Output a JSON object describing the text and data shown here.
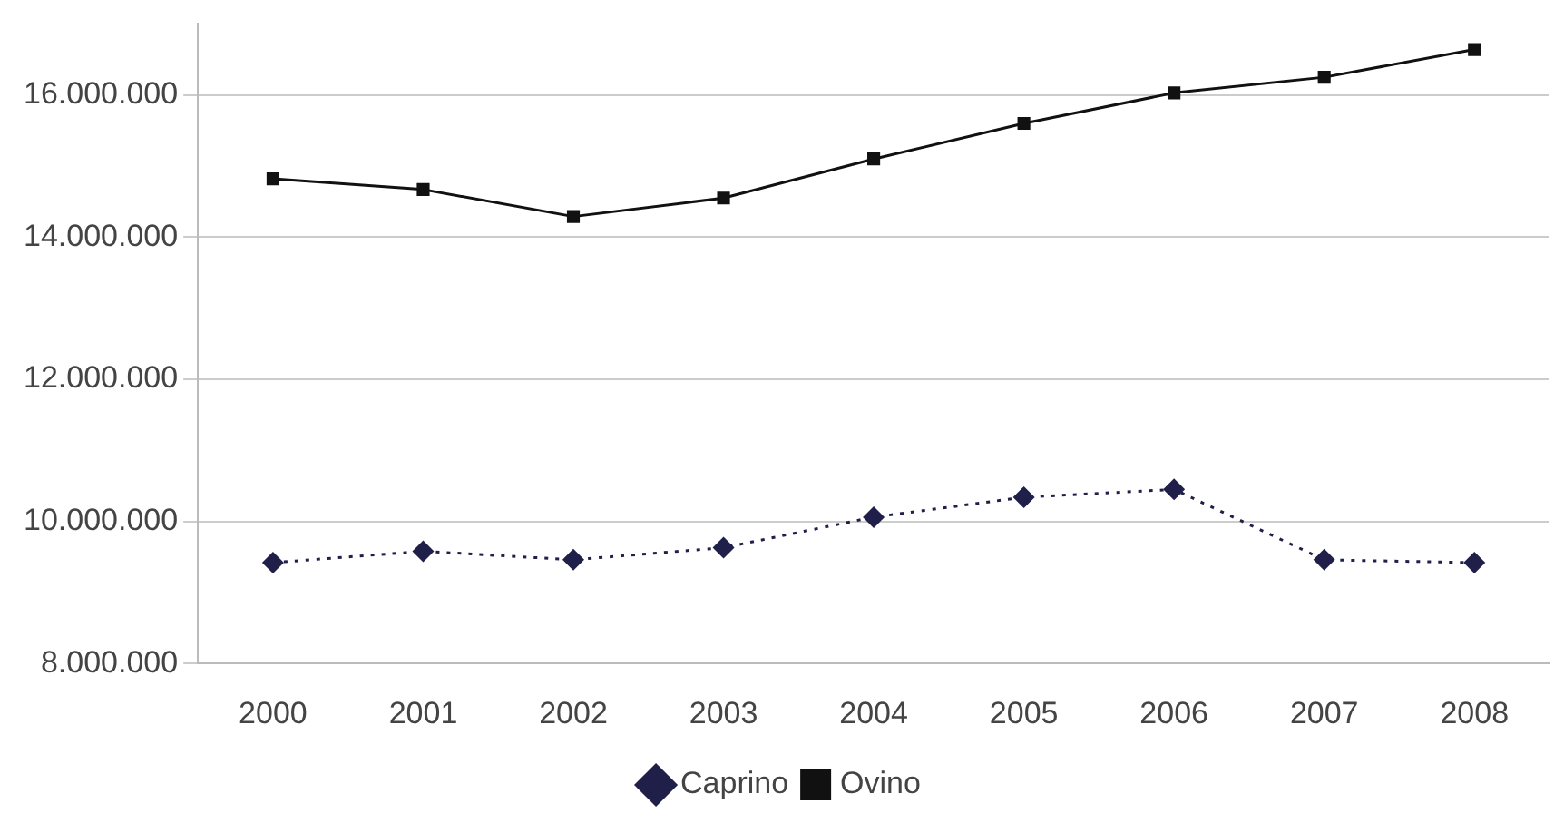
{
  "chart_data": {
    "type": "line",
    "categories": [
      "2000",
      "2001",
      "2002",
      "2003",
      "2004",
      "2005",
      "2006",
      "2007",
      "2008"
    ],
    "series": [
      {
        "name": "Caprino",
        "color": "#1f1f4a",
        "values": [
          9420000,
          9580000,
          9460000,
          9630000,
          10060000,
          10340000,
          10450000,
          9460000,
          9420000
        ],
        "marker": "diamond",
        "line_style": "dotted"
      },
      {
        "name": "Ovino",
        "color": "#111111",
        "values": [
          14820000,
          14670000,
          14290000,
          14550000,
          15100000,
          15600000,
          16030000,
          16250000,
          16640000
        ],
        "marker": "square",
        "line_style": "solid"
      }
    ],
    "ylim": [
      8000000,
      17000000
    ],
    "yticks": [
      {
        "value": 8000000,
        "label": "8.000.000"
      },
      {
        "value": 10000000,
        "label": "10.000.000"
      },
      {
        "value": 12000000,
        "label": "12.000.000"
      },
      {
        "value": 14000000,
        "label": "14.000.000"
      },
      {
        "value": 16000000,
        "label": "16.000.000"
      }
    ],
    "grid": "y",
    "legend": "bottom"
  }
}
